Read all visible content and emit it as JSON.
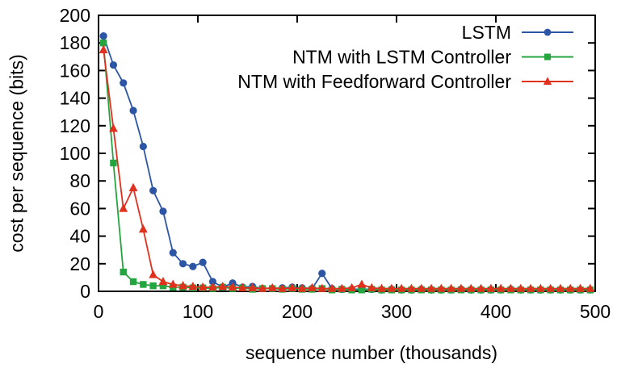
{
  "chart_data": {
    "type": "line",
    "title": "",
    "xlabel": "sequence number (thousands)",
    "ylabel": "cost per sequence (bits)",
    "xlim": [
      0,
      500
    ],
    "ylim": [
      0,
      200
    ],
    "xticks": [
      0,
      100,
      200,
      300,
      400,
      500
    ],
    "yticks": [
      0,
      20,
      40,
      60,
      80,
      100,
      120,
      140,
      160,
      180,
      200
    ],
    "grid": false,
    "legend_position": "top-right-inside",
    "background_color": "#ffffff",
    "axis_color": "#000000",
    "x": [
      5,
      15,
      25,
      35,
      45,
      55,
      65,
      75,
      85,
      95,
      105,
      115,
      125,
      135,
      145,
      155,
      165,
      175,
      185,
      195,
      205,
      215,
      225,
      235,
      245,
      255,
      265,
      275,
      285,
      295,
      305,
      315,
      325,
      335,
      345,
      355,
      365,
      375,
      385,
      395,
      405,
      415,
      425,
      435,
      445,
      455,
      465,
      475,
      485,
      495
    ],
    "series": [
      {
        "name": "LSTM",
        "color": "#2c55a5",
        "marker": "circle",
        "values": [
          185,
          164,
          151,
          131,
          105,
          73,
          58,
          28,
          20,
          18,
          21,
          7,
          3,
          6,
          3,
          3.5,
          2,
          2,
          2.5,
          3,
          2.5,
          2,
          13,
          2,
          1.5,
          1.5,
          1.5,
          1.5,
          1,
          1.5,
          1,
          1,
          1.5,
          1,
          1,
          1,
          1.5,
          1,
          1,
          1,
          1,
          1.5,
          1,
          1,
          1,
          1,
          1,
          1,
          1,
          1
        ]
      },
      {
        "name": "NTM with LSTM Controller",
        "color": "#25a53f",
        "marker": "square",
        "values": [
          180,
          93,
          14,
          7,
          5,
          4,
          4,
          3,
          3,
          2.5,
          2.5,
          2,
          3,
          2,
          2.5,
          1.5,
          2,
          2,
          1.5,
          2,
          1.5,
          1.5,
          2,
          1,
          1.5,
          1,
          1,
          1.5,
          1,
          1,
          1,
          1,
          1,
          1,
          1,
          1,
          1,
          1,
          1,
          1,
          1,
          1,
          1,
          1,
          1,
          1,
          1,
          1,
          1,
          1
        ]
      },
      {
        "name": "NTM with Feedforward Controller",
        "color": "#e0301e",
        "marker": "triangle",
        "values": [
          175,
          118,
          60,
          75,
          45,
          12,
          7,
          5,
          4,
          3.5,
          3,
          3,
          3.5,
          3,
          2.5,
          2.5,
          2,
          2.5,
          2,
          2.5,
          2,
          2.5,
          2,
          2,
          2,
          2.5,
          5,
          2.5,
          2,
          2,
          2,
          2,
          2,
          2,
          2,
          2,
          2,
          2,
          2,
          2,
          2,
          2,
          2,
          2,
          2,
          2,
          2,
          2,
          2,
          2
        ]
      }
    ]
  }
}
